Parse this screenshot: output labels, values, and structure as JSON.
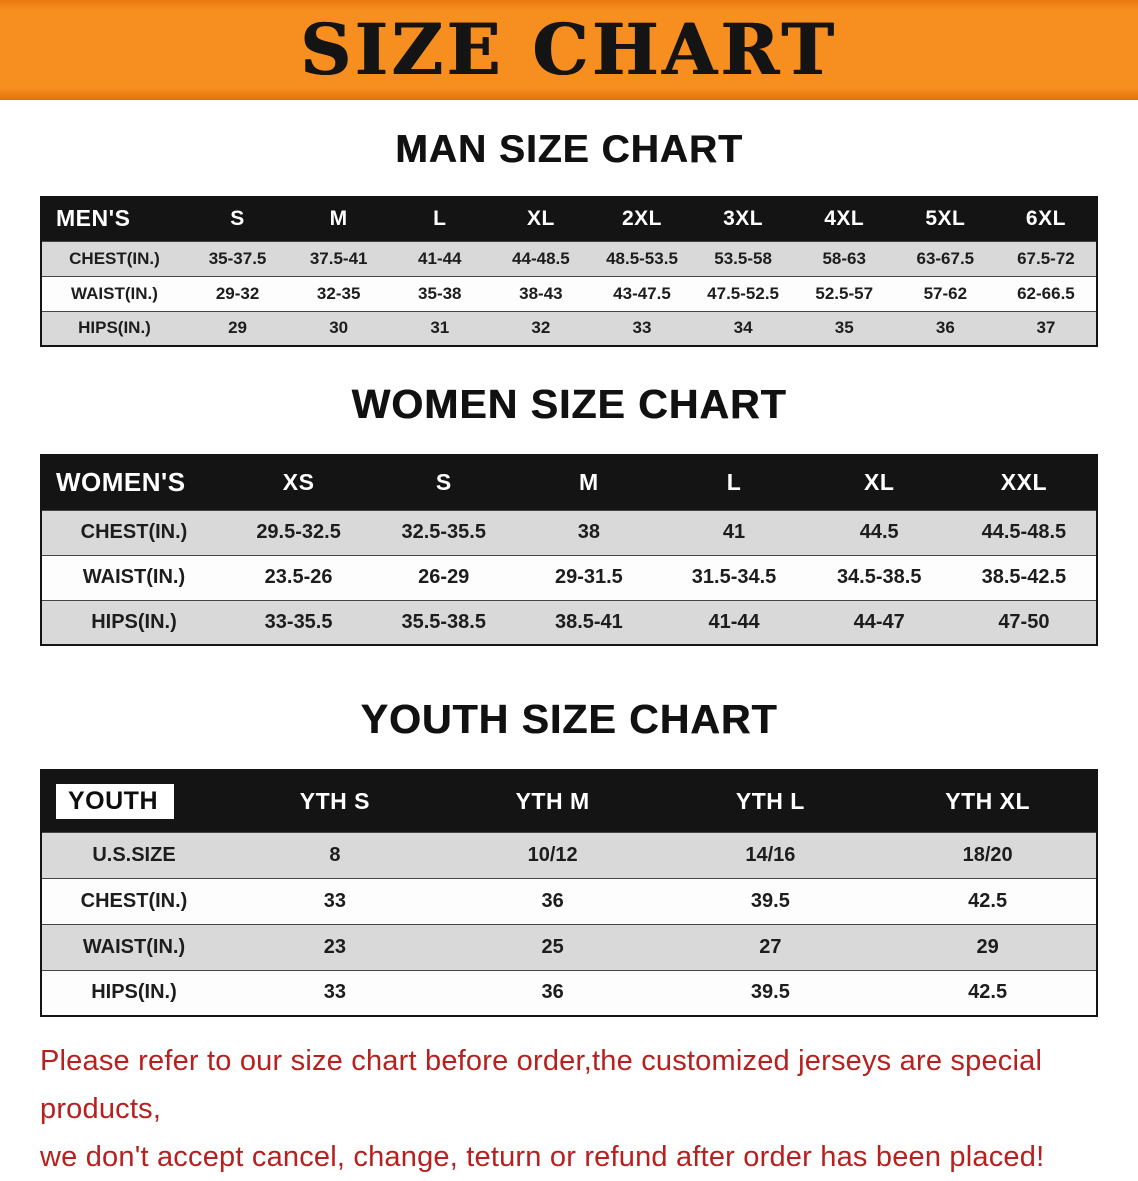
{
  "banner": {
    "title": "SIZE CHART"
  },
  "colors": {
    "banner_orange": "#f78e20",
    "header_black": "#141414",
    "row_gray": "#d9d9d9",
    "note_red": "#b7201e"
  },
  "sections": [
    {
      "heading": "MAN SIZE CHART",
      "table": {
        "header": [
          "MEN'S",
          "S",
          "M",
          "L",
          "XL",
          "2XL",
          "3XL",
          "4XL",
          "5XL",
          "6XL"
        ],
        "rows": [
          {
            "label": "CHEST(IN.)",
            "values": [
              "35-37.5",
              "37.5-41",
              "41-44",
              "44-48.5",
              "48.5-53.5",
              "53.5-58",
              "58-63",
              "63-67.5",
              "67.5-72"
            ]
          },
          {
            "label": "WAIST(IN.)",
            "values": [
              "29-32",
              "32-35",
              "35-38",
              "38-43",
              "43-47.5",
              "47.5-52.5",
              "52.5-57",
              "57-62",
              "62-66.5"
            ]
          },
          {
            "label": "HIPS(IN.)",
            "values": [
              "29",
              "30",
              "31",
              "32",
              "33",
              "34",
              "35",
              "36",
              "37"
            ]
          }
        ]
      }
    },
    {
      "heading": "WOMEN SIZE CHART",
      "table": {
        "header": [
          "WOMEN'S",
          "XS",
          "S",
          "M",
          "L",
          "XL",
          "XXL"
        ],
        "rows": [
          {
            "label": "CHEST(IN.)",
            "values": [
              "29.5-32.5",
              "32.5-35.5",
              "38",
              "41",
              "44.5",
              "44.5-48.5"
            ]
          },
          {
            "label": "WAIST(IN.)",
            "values": [
              "23.5-26",
              "26-29",
              "29-31.5",
              "31.5-34.5",
              "34.5-38.5",
              "38.5-42.5"
            ]
          },
          {
            "label": "HIPS(IN.)",
            "values": [
              "33-35.5",
              "35.5-38.5",
              "38.5-41",
              "41-44",
              "44-47",
              "47-50"
            ]
          }
        ]
      }
    },
    {
      "heading": "YOUTH SIZE CHART",
      "table": {
        "header": [
          "YOUTH",
          "YTH S",
          "YTH M",
          "YTH L",
          "YTH XL"
        ],
        "rows": [
          {
            "label": "U.S.SIZE",
            "values": [
              "8",
              "10/12",
              "14/16",
              "18/20"
            ]
          },
          {
            "label": "CHEST(IN.)",
            "values": [
              "33",
              "36",
              "39.5",
              "42.5"
            ]
          },
          {
            "label": "WAIST(IN.)",
            "values": [
              "23",
              "25",
              "27",
              "29"
            ]
          },
          {
            "label": "HIPS(IN.)",
            "values": [
              "33",
              "36",
              "39.5",
              "42.5"
            ]
          }
        ]
      }
    }
  ],
  "footer": {
    "line1": "Please refer to our size chart before order,the customized jerseys are special products,",
    "line2": "we don't accept cancel, change, teturn or refund after order has been placed!"
  }
}
